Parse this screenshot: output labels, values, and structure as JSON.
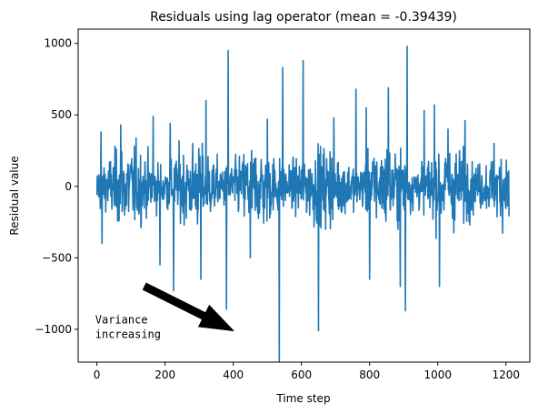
{
  "chart_data": {
    "type": "line",
    "title": "Residuals using lag operator (mean = -0.39439)",
    "xlabel": "Time step",
    "ylabel": "Residual value",
    "xlim": [
      -55,
      1270
    ],
    "ylim": [
      -1230,
      1100
    ],
    "xticks": [
      0,
      200,
      400,
      600,
      800,
      1000,
      1200
    ],
    "yticks": [
      -1000,
      -500,
      0,
      500,
      1000
    ],
    "xtick_labels": [
      "0",
      "200",
      "400",
      "600",
      "800",
      "1000",
      "1200"
    ],
    "ytick_labels": [
      "−1000",
      "−500",
      "0",
      "500",
      "1000"
    ],
    "grid": false,
    "legend": "none",
    "color": "#1f77b4",
    "series": [
      {
        "x_start": 0,
        "x_end": 1209,
        "n_points": 1210,
        "values_approx_extremes": [
          {
            "x": 0,
            "y": -60
          },
          {
            "x": 12,
            "y": 380
          },
          {
            "x": 15,
            "y": -400
          },
          {
            "x": 70,
            "y": 430
          },
          {
            "x": 165,
            "y": 490
          },
          {
            "x": 185,
            "y": -550
          },
          {
            "x": 215,
            "y": 440
          },
          {
            "x": 225,
            "y": -730
          },
          {
            "x": 305,
            "y": -650
          },
          {
            "x": 320,
            "y": 600
          },
          {
            "x": 385,
            "y": 950
          },
          {
            "x": 380,
            "y": -860
          },
          {
            "x": 450,
            "y": -500
          },
          {
            "x": 500,
            "y": 470
          },
          {
            "x": 535,
            "y": -1230
          },
          {
            "x": 545,
            "y": 830
          },
          {
            "x": 605,
            "y": 880
          },
          {
            "x": 650,
            "y": -1010
          },
          {
            "x": 695,
            "y": 480
          },
          {
            "x": 760,
            "y": 680
          },
          {
            "x": 790,
            "y": 550
          },
          {
            "x": 800,
            "y": -650
          },
          {
            "x": 855,
            "y": 690
          },
          {
            "x": 890,
            "y": -700
          },
          {
            "x": 905,
            "y": -870
          },
          {
            "x": 910,
            "y": 980
          },
          {
            "x": 960,
            "y": 530
          },
          {
            "x": 990,
            "y": 570
          },
          {
            "x": 1005,
            "y": -700
          },
          {
            "x": 1030,
            "y": 400
          },
          {
            "x": 1080,
            "y": 460
          },
          {
            "x": 1165,
            "y": 300
          },
          {
            "x": 1209,
            "y": -210
          }
        ]
      }
    ],
    "annotations": [
      {
        "text_lines": [
          "Variance",
          "increasing"
        ],
        "text_x": -5,
        "text_y": -960,
        "arrow_from": [
          140,
          -700
        ],
        "arrow_to": [
          400,
          -1010
        ]
      }
    ]
  }
}
